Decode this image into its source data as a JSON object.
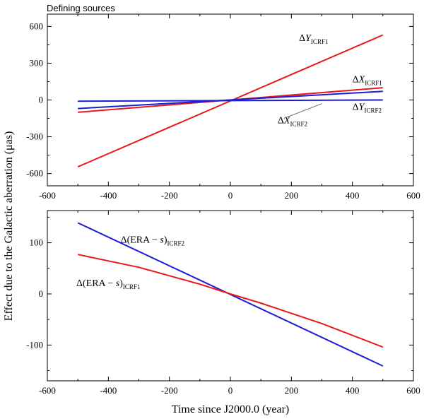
{
  "header_label": "Defining sources",
  "ylabel": "Effect due to the Galactic aberration (μas)",
  "xlabel": "Time since J2000.0 (year)",
  "chart_data": [
    {
      "type": "line",
      "xlim": [
        -600,
        600
      ],
      "ylim": [
        -700,
        700
      ],
      "xticks": [
        -600,
        -400,
        -200,
        0,
        200,
        400,
        600
      ],
      "yticks": [
        -600,
        -300,
        0,
        300,
        600
      ],
      "series": [
        {
          "name": "ΔY_ICRF1",
          "color": "#e8191d",
          "x": [
            -500,
            500
          ],
          "y": [
            -545,
            530
          ]
        },
        {
          "name": "ΔX_ICRF1",
          "color": "#e8191d",
          "x": [
            -500,
            500
          ],
          "y": [
            -100,
            100
          ]
        },
        {
          "name": "ΔX_ICRF2",
          "color": "#1d1dd8",
          "x": [
            -500,
            500
          ],
          "y": [
            -70,
            70
          ]
        },
        {
          "name": "ΔY_ICRF2",
          "color": "#1d1dd8",
          "x": [
            -500,
            500
          ],
          "y": [
            -10,
            0
          ]
        }
      ],
      "annotations": [
        {
          "main": "Δ",
          "var": "Y",
          "sub": "ICRF1",
          "x": 225,
          "y": 480
        },
        {
          "main": "Δ",
          "var": "X",
          "sub": "ICRF1",
          "x": 400,
          "y": 145
        },
        {
          "main": "Δ",
          "var": "Y",
          "sub": "ICRF2",
          "x": 400,
          "y": -80
        },
        {
          "main": "Δ",
          "var": "X",
          "sub": "ICRF2",
          "x": 155,
          "y": -190
        }
      ]
    },
    {
      "type": "line",
      "xlim": [
        -600,
        600
      ],
      "ylim": [
        -170,
        163
      ],
      "xticks": [
        -600,
        -400,
        -200,
        0,
        200,
        400,
        600
      ],
      "yticks": [
        -100,
        0,
        100
      ],
      "series": [
        {
          "name": "Δ(ERA − s)_ICRF2",
          "color": "#1d1dd8",
          "x": [
            -500,
            500
          ],
          "y": [
            139,
            -141
          ]
        },
        {
          "name": "Δ(ERA − s)_ICRF1",
          "color": "#e8191d",
          "x": [
            -500,
            -300,
            -100,
            0,
            100,
            300,
            500
          ],
          "y": [
            77,
            52,
            19,
            0,
            -18,
            -58,
            -104
          ]
        }
      ],
      "annotations": [
        {
          "main": "Δ(ERA − ",
          "var": "s",
          "tail": ")",
          "sub": "ICRF2",
          "x": -360,
          "y": 100
        },
        {
          "main": "Δ(ERA − ",
          "var": "s",
          "tail": ")",
          "sub": "ICRF1",
          "x": -505,
          "y": 15
        }
      ]
    }
  ]
}
